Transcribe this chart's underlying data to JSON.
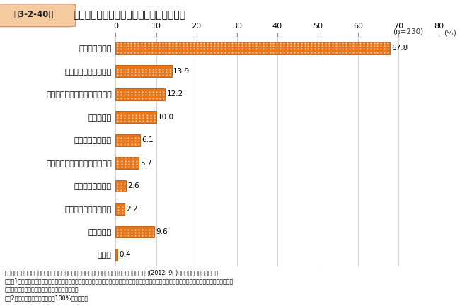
{
  "title_box_label": "第3-2-40図",
  "title_main": "東大阪市の製造業事業所の今後の経営方向",
  "n_label": "(n=230)",
  "categories": [
    "現状を維持する",
    "事業の多角化を進める",
    "現事業の規模拡大を考えている",
    "廃業をする",
    "移転を考えている",
    "現事業の規模縮小を考えている",
    "業種転換を進める",
    "事業譲渡を考えている",
    "分からない",
    "その他"
  ],
  "values": [
    67.8,
    13.9,
    12.2,
    10.0,
    6.1,
    5.7,
    2.6,
    2.2,
    9.6,
    0.4
  ],
  "bar_color": "#E8761A",
  "bar_edge_color": "#B85A10",
  "dot_color": "#FFFFFF",
  "xlim": [
    0,
    80
  ],
  "xticks": [
    0,
    10,
    20,
    30,
    40,
    50,
    60,
    70,
    80
  ],
  "note1": "資料：東大阪市「東大阪市住工共生まちづくり条例に関する検討のためのアンケート調査報告書(2012年9月)」より、中小企業庁作成。",
  "note2": "（注）1．東大阪市域の中でも住工の混在がより進展し、住工共生を進める上での課題が多く内在していると考えられる地域を抽出し、そこに立地する",
  "note3": "　　　製造業事業者に対してアンケートを実施。",
  "note4": "　　2．複数回答のため、合計は100%を超える。",
  "title_box_facecolor": "#F5CBA0",
  "title_box_edgecolor": "#D4956A",
  "bg_color": "#FFFFFF",
  "grid_color": "#CCCCCC",
  "axis_color": "#AAAAAA"
}
